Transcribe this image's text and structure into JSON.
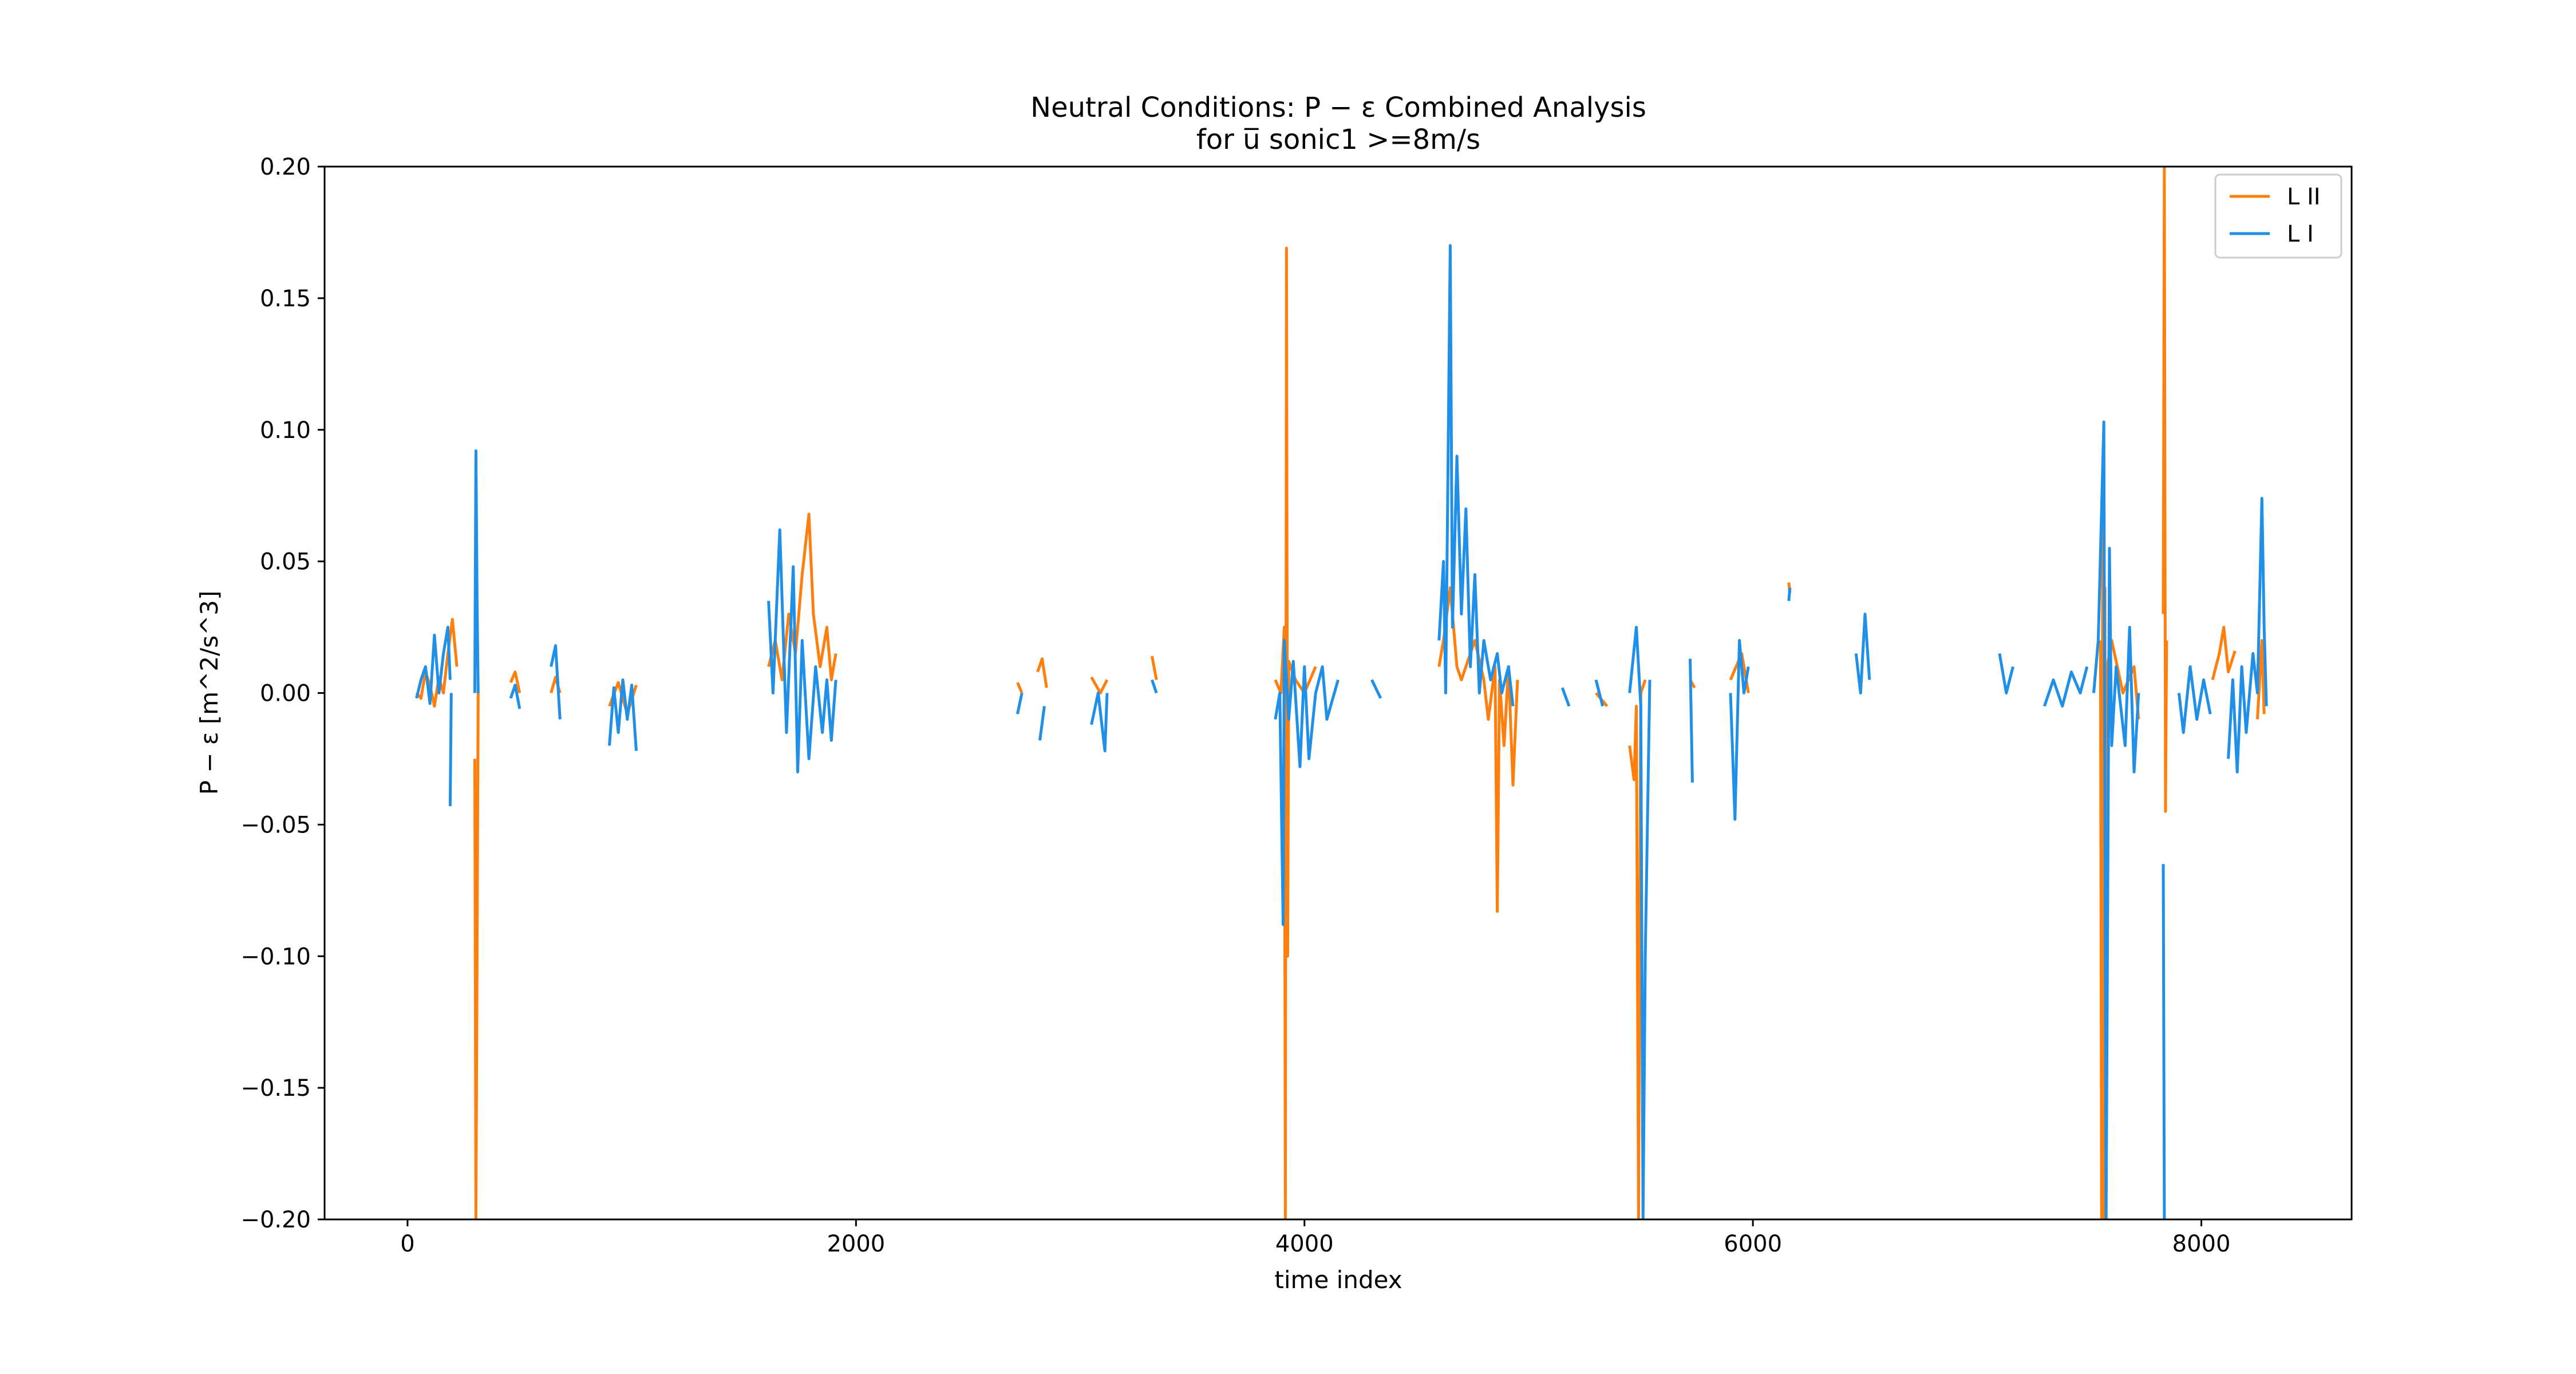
{
  "chart_data": {
    "type": "line",
    "title_line1": "Neutral Conditions: P − ε Combined Analysis",
    "title_line2": "for u̅ sonic1 >=8m/s",
    "xlabel": "time index",
    "ylabel": "P − ε [m^2/s^3]",
    "xlim": [
      -370,
      8670
    ],
    "ylim": [
      -0.2,
      0.2
    ],
    "x_ticks": [
      0,
      2000,
      4000,
      6000,
      8000
    ],
    "x_tick_labels": [
      "0",
      "2000",
      "4000",
      "6000",
      "8000"
    ],
    "y_ticks": [
      0.2,
      0.15,
      0.1,
      0.05,
      0.0,
      -0.05,
      -0.1,
      -0.15,
      -0.2
    ],
    "y_tick_labels": [
      "0.20",
      "0.15",
      "0.10",
      "0.05",
      "0.00",
      "−0.05",
      "−0.10",
      "−0.15",
      "−0.20"
    ],
    "grid": false,
    "legend": {
      "position": "top-right",
      "entries": [
        "L II",
        "L I"
      ]
    },
    "series": [
      {
        "name": "L II",
        "color": "#ff7f0e",
        "segments": [
          [
            [
              40,
              0.0
            ],
            [
              60,
              -0.002
            ],
            [
              80,
              0.008
            ],
            [
              100,
              0.003
            ],
            [
              120,
              -0.005
            ],
            [
              140,
              0.006
            ],
            [
              160,
              0.0
            ],
            [
              180,
              0.015
            ],
            [
              200,
              0.028
            ],
            [
              220,
              0.01
            ]
          ],
          [
            [
              300,
              -0.025
            ],
            [
              305,
              -0.2
            ],
            [
              310,
              -0.1
            ],
            [
              315,
              0.0
            ]
          ],
          [
            [
              460,
              0.004
            ],
            [
              480,
              0.008
            ],
            [
              500,
              0.0
            ]
          ],
          [
            [
              640,
              0.0
            ],
            [
              660,
              0.006
            ],
            [
              680,
              0.0
            ]
          ],
          [
            [
              900,
              -0.005
            ],
            [
              940,
              0.004
            ],
            [
              980,
              -0.008
            ],
            [
              1020,
              0.003
            ]
          ],
          [
            [
              1610,
              0.01
            ],
            [
              1640,
              0.02
            ],
            [
              1670,
              0.005
            ],
            [
              1700,
              0.03
            ],
            [
              1730,
              0.015
            ],
            [
              1760,
              0.045
            ],
            [
              1790,
              0.068
            ],
            [
              1810,
              0.03
            ],
            [
              1840,
              0.01
            ],
            [
              1870,
              0.025
            ],
            [
              1890,
              0.005
            ],
            [
              1910,
              0.015
            ]
          ],
          [
            [
              2720,
              0.004
            ],
            [
              2740,
              0.0
            ]
          ],
          [
            [
              2810,
              0.008
            ],
            [
              2830,
              0.013
            ],
            [
              2850,
              0.002
            ]
          ],
          [
            [
              3050,
              0.006
            ],
            [
              3090,
              0.0
            ],
            [
              3120,
              0.005
            ]
          ],
          [
            [
              3320,
              0.014
            ],
            [
              3340,
              0.005
            ]
          ],
          [
            [
              3870,
              0.005
            ],
            [
              3895,
              0.0
            ],
            [
              3910,
              0.025
            ],
            [
              3915,
              -0.2
            ],
            [
              3920,
              0.169
            ],
            [
              3925,
              -0.1
            ],
            [
              3930,
              0.012
            ],
            [
              3960,
              0.005
            ],
            [
              4000,
              0.0
            ],
            [
              4050,
              0.01
            ]
          ],
          [
            [
              4600,
              0.01
            ],
            [
              4620,
              0.02
            ],
            [
              4650,
              0.04
            ],
            [
              4680,
              0.01
            ],
            [
              4700,
              0.005
            ],
            [
              4740,
              0.015
            ],
            [
              4760,
              0.02
            ],
            [
              4800,
              0.005
            ],
            [
              4820,
              -0.01
            ],
            [
              4850,
              0.01
            ],
            [
              4860,
              -0.083
            ],
            [
              4870,
              0.005
            ],
            [
              4890,
              -0.02
            ],
            [
              4910,
              0.01
            ],
            [
              4930,
              -0.035
            ],
            [
              4950,
              0.005
            ]
          ],
          [
            [
              5300,
              0.0
            ],
            [
              5350,
              -0.005
            ]
          ],
          [
            [
              5450,
              -0.02
            ],
            [
              5470,
              -0.033
            ],
            [
              5480,
              -0.005
            ],
            [
              5490,
              -0.2
            ],
            [
              5500,
              0.0
            ],
            [
              5520,
              0.005
            ]
          ],
          [
            [
              5720,
              0.005
            ],
            [
              5740,
              0.002
            ]
          ],
          [
            [
              5900,
              0.005
            ],
            [
              5950,
              0.015
            ],
            [
              5980,
              0.0
            ]
          ],
          [
            [
              6160,
              0.042
            ],
            [
              6165,
              0.038
            ]
          ],
          [
            [
              7550,
              0.02
            ],
            [
              7555,
              -0.2
            ],
            [
              7560,
              0.068
            ],
            [
              7565,
              -0.2
            ],
            [
              7570,
              0.04
            ],
            [
              7575,
              -0.2
            ],
            [
              7580,
              0.01
            ],
            [
              7600,
              0.02
            ],
            [
              7650,
              0.0
            ],
            [
              7700,
              0.01
            ],
            [
              7720,
              -0.01
            ]
          ],
          [
            [
              7830,
              0.03
            ],
            [
              7835,
              0.2
            ],
            [
              7840,
              -0.045
            ],
            [
              7845,
              0.02
            ]
          ],
          [
            [
              8050,
              0.005
            ],
            [
              8080,
              0.015
            ],
            [
              8100,
              0.025
            ],
            [
              8120,
              0.008
            ],
            [
              8150,
              0.016
            ]
          ],
          [
            [
              8250,
              -0.01
            ],
            [
              8270,
              0.02
            ],
            [
              8280,
              -0.008
            ]
          ]
        ]
      },
      {
        "name": "L I",
        "color": "#1f8fe8",
        "segments": [
          [
            [
              40,
              -0.002
            ],
            [
              60,
              0.005
            ],
            [
              80,
              0.01
            ],
            [
              100,
              -0.004
            ],
            [
              120,
              0.022
            ],
            [
              140,
              0.0
            ],
            [
              160,
              0.015
            ],
            [
              180,
              0.025
            ],
            [
              190,
              0.005
            ]
          ],
          [
            [
              190,
              -0.043
            ],
            [
              195,
              0.0
            ]
          ],
          [
            [
              300,
              0.0
            ],
            [
              305,
              0.092
            ],
            [
              310,
              0.035
            ],
            [
              315,
              0.0
            ]
          ],
          [
            [
              460,
              -0.002
            ],
            [
              480,
              0.003
            ],
            [
              500,
              -0.006
            ]
          ],
          [
            [
              640,
              0.01
            ],
            [
              660,
              0.018
            ],
            [
              680,
              -0.01
            ]
          ],
          [
            [
              900,
              -0.02
            ],
            [
              920,
              0.002
            ],
            [
              940,
              -0.015
            ],
            [
              960,
              0.005
            ],
            [
              980,
              -0.01
            ],
            [
              1000,
              0.003
            ],
            [
              1020,
              -0.022
            ]
          ],
          [
            [
              1610,
              0.035
            ],
            [
              1630,
              0.0
            ],
            [
              1660,
              0.062
            ],
            [
              1690,
              -0.015
            ],
            [
              1720,
              0.048
            ],
            [
              1740,
              -0.03
            ],
            [
              1760,
              0.02
            ],
            [
              1790,
              -0.025
            ],
            [
              1820,
              0.01
            ],
            [
              1850,
              -0.015
            ],
            [
              1870,
              0.005
            ],
            [
              1890,
              -0.018
            ],
            [
              1910,
              0.005
            ]
          ],
          [
            [
              2720,
              -0.008
            ],
            [
              2740,
              0.0
            ]
          ],
          [
            [
              2820,
              -0.018
            ],
            [
              2840,
              -0.005
            ]
          ],
          [
            [
              3050,
              -0.012
            ],
            [
              3080,
              0.0
            ],
            [
              3110,
              -0.022
            ],
            [
              3120,
              0.0
            ]
          ],
          [
            [
              3320,
              0.005
            ],
            [
              3340,
              0.0
            ]
          ],
          [
            [
              3870,
              -0.01
            ],
            [
              3890,
              0.0
            ],
            [
              3905,
              -0.088
            ],
            [
              3910,
              0.02
            ],
            [
              3930,
              -0.01
            ],
            [
              3950,
              0.012
            ],
            [
              3980,
              -0.028
            ],
            [
              4000,
              0.01
            ],
            [
              4020,
              -0.025
            ],
            [
              4050,
              0.0
            ],
            [
              4080,
              0.01
            ],
            [
              4100,
              -0.01
            ],
            [
              4150,
              0.005
            ]
          ],
          [
            [
              4300,
              0.005
            ],
            [
              4340,
              -0.002
            ]
          ],
          [
            [
              4600,
              0.02
            ],
            [
              4620,
              0.05
            ],
            [
              4630,
              0.0
            ],
            [
              4650,
              0.17
            ],
            [
              4660,
              0.025
            ],
            [
              4680,
              0.09
            ],
            [
              4700,
              0.03
            ],
            [
              4720,
              0.07
            ],
            [
              4740,
              0.01
            ],
            [
              4760,
              0.045
            ],
            [
              4780,
              0.0
            ],
            [
              4800,
              0.02
            ],
            [
              4830,
              0.005
            ],
            [
              4860,
              0.015
            ],
            [
              4880,
              0.0
            ],
            [
              4910,
              0.01
            ],
            [
              4930,
              -0.005
            ]
          ],
          [
            [
              5150,
              0.002
            ],
            [
              5180,
              -0.005
            ]
          ],
          [
            [
              5300,
              0.005
            ],
            [
              5330,
              -0.005
            ]
          ],
          [
            [
              5450,
              0.0
            ],
            [
              5480,
              0.025
            ],
            [
              5500,
              -0.005
            ],
            [
              5510,
              -0.2
            ],
            [
              5520,
              -0.1
            ],
            [
              5540,
              0.005
            ]
          ],
          [
            [
              5720,
              0.013
            ],
            [
              5730,
              -0.034
            ]
          ],
          [
            [
              5900,
              0.0
            ],
            [
              5920,
              -0.048
            ],
            [
              5940,
              0.02
            ],
            [
              5960,
              0.0
            ],
            [
              5980,
              0.01
            ]
          ],
          [
            [
              6160,
              0.035
            ],
            [
              6165,
              0.04
            ]
          ],
          [
            [
              6460,
              0.015
            ],
            [
              6480,
              0.0
            ],
            [
              6500,
              0.03
            ],
            [
              6520,
              0.005
            ]
          ],
          [
            [
              7100,
              0.015
            ],
            [
              7130,
              0.0
            ],
            [
              7160,
              0.01
            ]
          ],
          [
            [
              7300,
              -0.005
            ],
            [
              7340,
              0.005
            ],
            [
              7380,
              -0.005
            ],
            [
              7420,
              0.008
            ],
            [
              7460,
              0.0
            ],
            [
              7490,
              0.01
            ]
          ],
          [
            [
              7520,
              0.0
            ],
            [
              7540,
              0.02
            ],
            [
              7565,
              0.103
            ],
            [
              7575,
              -0.2
            ],
            [
              7590,
              0.055
            ],
            [
              7600,
              -0.02
            ],
            [
              7620,
              0.01
            ],
            [
              7660,
              -0.02
            ],
            [
              7680,
              0.025
            ],
            [
              7700,
              -0.03
            ],
            [
              7720,
              0.0
            ]
          ],
          [
            [
              7830,
              -0.065
            ],
            [
              7835,
              -0.2
            ]
          ],
          [
            [
              7900,
              0.0
            ],
            [
              7920,
              -0.015
            ],
            [
              7950,
              0.01
            ],
            [
              7980,
              -0.01
            ],
            [
              8010,
              0.005
            ],
            [
              8040,
              -0.008
            ]
          ],
          [
            [
              8120,
              -0.025
            ],
            [
              8140,
              0.005
            ],
            [
              8160,
              -0.03
            ],
            [
              8180,
              0.01
            ],
            [
              8200,
              -0.015
            ],
            [
              8230,
              0.015
            ],
            [
              8250,
              0.0
            ],
            [
              8270,
              0.074
            ],
            [
              8280,
              0.025
            ],
            [
              8290,
              -0.005
            ]
          ]
        ]
      }
    ]
  }
}
